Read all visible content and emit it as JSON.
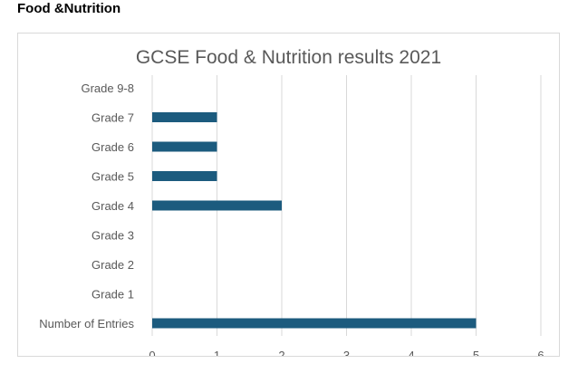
{
  "page": {
    "heading": "Food &Nutrition"
  },
  "colors": {
    "bar": "#1c5b7e",
    "grid": "#d9d9d9",
    "text": "#595959"
  },
  "chart_data": {
    "type": "bar",
    "orientation": "horizontal",
    "title": "GCSE Food & Nutrition results 2021",
    "xlabel": "",
    "ylabel": "",
    "categories": [
      "Grade 9-8",
      "Grade 7",
      "Grade 6",
      "Grade 5",
      "Grade 4",
      "Grade 3",
      "Grade 2",
      "Grade 1",
      "Number of Entries"
    ],
    "values": [
      0,
      1,
      1,
      1,
      2,
      0,
      0,
      0,
      5
    ],
    "xlim": [
      0,
      6
    ],
    "xticks": [
      0,
      1,
      2,
      3,
      4,
      5,
      6
    ],
    "grid": true,
    "legend": "none"
  }
}
